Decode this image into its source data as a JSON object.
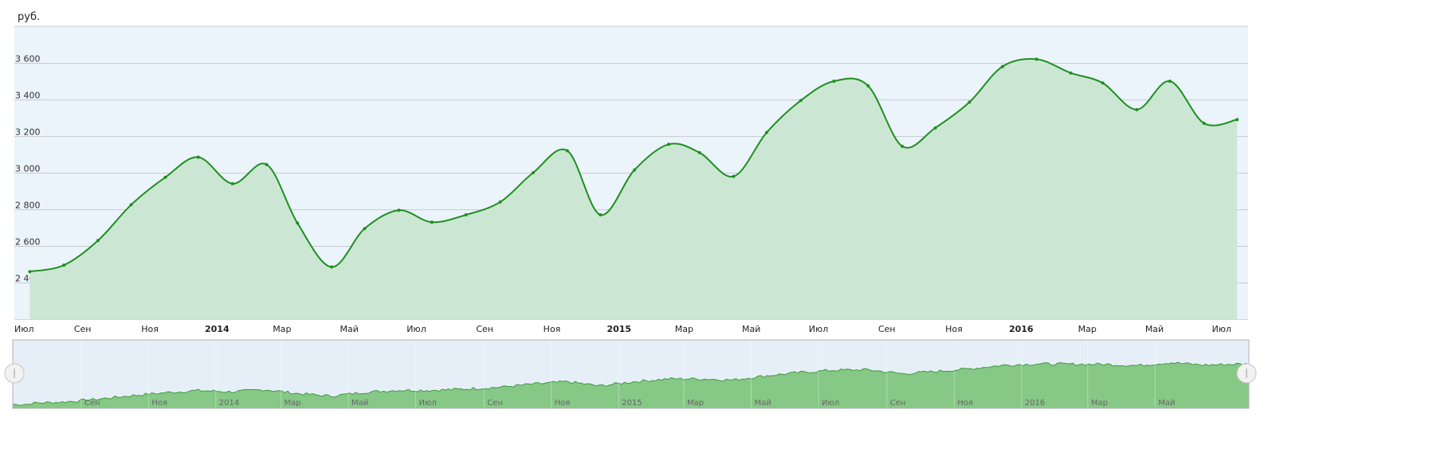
{
  "chart_data": {
    "type": "area",
    "unit_label": "руб.",
    "y_ticks": [
      2400,
      2600,
      2800,
      3000,
      3200,
      3400,
      3600
    ],
    "y_tick_labels": [
      "2 400",
      "2 600",
      "2 800",
      "3 000",
      "3 200",
      "3 400",
      "3 600"
    ],
    "ylim": [
      2200,
      3800
    ],
    "xlim": [
      "2013-07-01",
      "2016-07-25"
    ],
    "x_ticks": [
      {
        "date": "2013-07-01",
        "label": "Июл",
        "bold": false
      },
      {
        "date": "2013-09-01",
        "label": "Сен",
        "bold": false
      },
      {
        "date": "2013-11-01",
        "label": "Ноя",
        "bold": false
      },
      {
        "date": "2014-01-01",
        "label": "2014",
        "bold": true
      },
      {
        "date": "2014-03-01",
        "label": "Мар",
        "bold": false
      },
      {
        "date": "2014-05-01",
        "label": "Май",
        "bold": false
      },
      {
        "date": "2014-07-01",
        "label": "Июл",
        "bold": false
      },
      {
        "date": "2014-09-01",
        "label": "Сен",
        "bold": false
      },
      {
        "date": "2014-11-01",
        "label": "Ноя",
        "bold": false
      },
      {
        "date": "2015-01-01",
        "label": "2015",
        "bold": true
      },
      {
        "date": "2015-03-01",
        "label": "Мар",
        "bold": false
      },
      {
        "date": "2015-05-01",
        "label": "Май",
        "bold": false
      },
      {
        "date": "2015-07-01",
        "label": "Июл",
        "bold": false
      },
      {
        "date": "2015-09-01",
        "label": "Сен",
        "bold": false
      },
      {
        "date": "2015-11-01",
        "label": "Ноя",
        "bold": false
      },
      {
        "date": "2016-01-01",
        "label": "2016",
        "bold": true
      },
      {
        "date": "2016-03-01",
        "label": "Мар",
        "bold": false
      },
      {
        "date": "2016-05-01",
        "label": "Май",
        "bold": false
      },
      {
        "date": "2016-07-01",
        "label": "Июл",
        "bold": false
      }
    ],
    "series": [
      {
        "points": [
          {
            "x": "2013-07-15",
            "y": 2460
          },
          {
            "x": "2013-08-15",
            "y": 2495
          },
          {
            "x": "2013-09-15",
            "y": 2630
          },
          {
            "x": "2013-10-15",
            "y": 2825
          },
          {
            "x": "2013-11-15",
            "y": 2975
          },
          {
            "x": "2013-12-15",
            "y": 3085
          },
          {
            "x": "2014-01-15",
            "y": 2940
          },
          {
            "x": "2014-02-15",
            "y": 3045
          },
          {
            "x": "2014-03-15",
            "y": 2725
          },
          {
            "x": "2014-04-15",
            "y": 2485
          },
          {
            "x": "2014-05-15",
            "y": 2695
          },
          {
            "x": "2014-06-15",
            "y": 2795
          },
          {
            "x": "2014-07-15",
            "y": 2730
          },
          {
            "x": "2014-08-15",
            "y": 2770
          },
          {
            "x": "2014-09-15",
            "y": 2840
          },
          {
            "x": "2014-10-15",
            "y": 3000
          },
          {
            "x": "2014-11-15",
            "y": 3120
          },
          {
            "x": "2014-12-15",
            "y": 2770
          },
          {
            "x": "2015-01-15",
            "y": 3015
          },
          {
            "x": "2015-02-15",
            "y": 3155
          },
          {
            "x": "2015-03-15",
            "y": 3110
          },
          {
            "x": "2015-04-15",
            "y": 2980
          },
          {
            "x": "2015-05-15",
            "y": 3220
          },
          {
            "x": "2015-06-15",
            "y": 3395
          },
          {
            "x": "2015-07-15",
            "y": 3500
          },
          {
            "x": "2015-08-15",
            "y": 3475
          },
          {
            "x": "2015-09-15",
            "y": 3145
          },
          {
            "x": "2015-10-15",
            "y": 3245
          },
          {
            "x": "2015-11-15",
            "y": 3385
          },
          {
            "x": "2015-12-15",
            "y": 3580
          },
          {
            "x": "2016-01-15",
            "y": 3620
          },
          {
            "x": "2016-02-15",
            "y": 3545
          },
          {
            "x": "2016-03-15",
            "y": 3490
          },
          {
            "x": "2016-04-15",
            "y": 3345
          },
          {
            "x": "2016-05-15",
            "y": 3500
          },
          {
            "x": "2016-06-15",
            "y": 3270
          },
          {
            "x": "2016-07-15",
            "y": 3290
          }
        ]
      }
    ],
    "navigator": {
      "x_ticks": [
        {
          "date": "2013-09-01",
          "label": "Сен"
        },
        {
          "date": "2013-11-01",
          "label": "Ноя"
        },
        {
          "date": "2014-01-01",
          "label": "2014"
        },
        {
          "date": "2014-03-01",
          "label": "Мар"
        },
        {
          "date": "2014-05-01",
          "label": "Май"
        },
        {
          "date": "2014-07-01",
          "label": "Июл"
        },
        {
          "date": "2014-09-01",
          "label": "Сен"
        },
        {
          "date": "2014-11-01",
          "label": "Ноя"
        },
        {
          "date": "2015-01-01",
          "label": "2015"
        },
        {
          "date": "2015-03-01",
          "label": "Мар"
        },
        {
          "date": "2015-05-01",
          "label": "Май"
        },
        {
          "date": "2015-07-01",
          "label": "Июл"
        },
        {
          "date": "2015-09-01",
          "label": "Сен"
        },
        {
          "date": "2015-11-01",
          "label": "Ноя"
        },
        {
          "date": "2016-01-01",
          "label": "2016"
        },
        {
          "date": "2016-03-01",
          "label": "Мар"
        },
        {
          "date": "2016-05-01",
          "label": "Май"
        }
      ],
      "xlim": [
        "2013-07-01",
        "2016-07-25"
      ]
    },
    "colors": {
      "line": "#1f8f1f",
      "area": "#cbe7d3",
      "plot_bg": "#ebf3fb",
      "grid": "#c8ccd2",
      "navigator_fill": "#86c886",
      "navigator_line": "#3f9a3f",
      "navigator_bg": "#e6eff8"
    }
  }
}
